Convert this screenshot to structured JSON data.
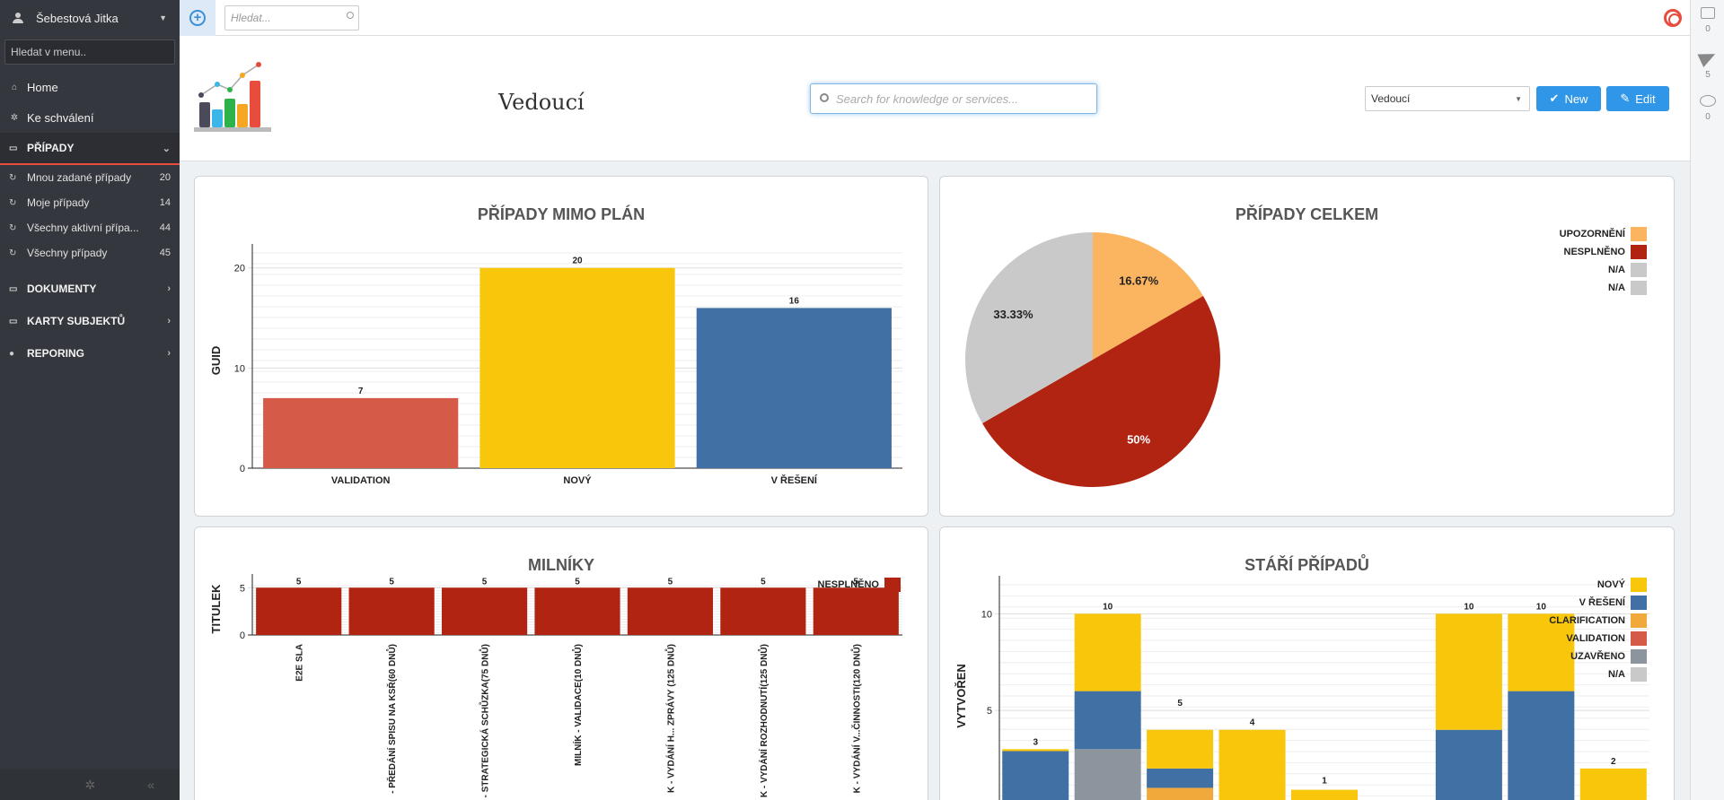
{
  "sidebar": {
    "user": "Šebestová Jitka",
    "search_placeholder": "Hledat v menu..",
    "top_items": [
      {
        "label": "Home",
        "icon": "home-icon"
      },
      {
        "label": "Ke schválení",
        "icon": "gear-icon"
      }
    ],
    "sections": [
      {
        "label": "PŘÍPADY",
        "active": true
      },
      {
        "label": "DOKUMENTY"
      },
      {
        "label": "KARTY SUBJEKTŮ"
      },
      {
        "label": "REPORING"
      }
    ],
    "case_items": [
      {
        "label": "Mnou zadané případy",
        "count": "20"
      },
      {
        "label": "Moje případy",
        "count": "14"
      },
      {
        "label": "Všechny aktivní přípa...",
        "count": "44"
      },
      {
        "label": "Všechny případy",
        "count": "45"
      }
    ]
  },
  "topbar": {
    "search_placeholder": "Hledat..."
  },
  "rail": {
    "inbox_count": "0",
    "sent_count": "5",
    "chat_count": "0"
  },
  "header": {
    "title": "Vedoucí",
    "search_placeholder": "Search for knowledge or services...",
    "select_value": "Vedoucí",
    "new_label": "New",
    "edit_label": "Edit"
  },
  "colors": {
    "yellow": "#f8c60a",
    "blue": "#4070a4",
    "red": "#b22412",
    "salmon": "#d55b48",
    "orange_light": "#fbb560",
    "grey": "#c9c9c9",
    "steel": "#8c949d",
    "amber": "#f2a93b"
  },
  "chart_data": [
    {
      "type": "bar",
      "title": "PŘÍPADY MIMO PLÁN",
      "ylabel": "GUID",
      "categories": [
        "VALIDATION",
        "NOVÝ",
        "V ŘEŠENÍ"
      ],
      "values": [
        7,
        20,
        16
      ],
      "bar_colors": [
        "#d55b48",
        "#f8c60a",
        "#4070a4"
      ],
      "ylim": [
        0,
        21.5
      ],
      "yticks": [
        0,
        10,
        20
      ]
    },
    {
      "type": "pie",
      "title": "PŘÍPADY CELKEM",
      "slices": [
        {
          "label": "UPOZORNĚNÍ",
          "value": 16.67,
          "text": "16.67%",
          "color": "#fbb560"
        },
        {
          "label": "NESPLNĚNO",
          "value": 50,
          "text": "50%",
          "color": "#b22412"
        },
        {
          "label": "N/A",
          "value": 33.33,
          "text": "33.33%",
          "color": "#c9c9c9"
        }
      ],
      "legend": [
        {
          "label": "UPOZORNĚNÍ",
          "color": "#fbb560"
        },
        {
          "label": "NESPLNĚNO",
          "color": "#b22412"
        },
        {
          "label": "N/A",
          "color": "#c9c9c9"
        },
        {
          "label": "N/A",
          "color": "#c9c9c9"
        }
      ]
    },
    {
      "type": "bar",
      "title": "MILNÍKY",
      "ylabel": "TITULEK",
      "legend": [
        {
          "label": "NESPLNĚNO",
          "color": "#b22412"
        }
      ],
      "categories": [
        "E2E SLA",
        "- PŘEDÁNÍ SPISU NA KSŘ(60 DNŮ)",
        "- STRATEGICKÁ SCHŮZKA(75 DNŮ)",
        "MILNÍK - VALIDACE(10 DNŮ)",
        "K - VYDÁNÍ H... ZPRÁVY (125 DNŮ)",
        "K - VYDÁNÍ ROZHODNUTÍ(125 DNŮ)",
        "K - VYDÁNÍ V...ČINNOSTI(120 DNŮ)"
      ],
      "values": [
        5,
        5,
        5,
        5,
        5,
        5,
        5
      ],
      "ylim": [
        0,
        5.5
      ],
      "yticks": [
        0,
        5
      ]
    },
    {
      "type": "bar",
      "stacked": true,
      "title": "STÁŘÍ PŘÍPADŮ",
      "ylabel": "VYTVOŘEN",
      "totals": [
        3,
        10,
        5,
        4,
        1,
        "",
        10,
        10,
        2
      ],
      "series": [
        {
          "name": "NOVÝ",
          "color": "#f8c60a",
          "values": [
            0.1,
            4,
            2,
            4,
            0.9,
            0,
            6,
            4,
            2
          ]
        },
        {
          "name": "V ŘEŠENÍ",
          "color": "#4070a4",
          "values": [
            2.8,
            3,
            1,
            0,
            0,
            0,
            4,
            6,
            0
          ]
        },
        {
          "name": "CLARIFICATION",
          "color": "#f2a93b",
          "values": [
            0.1,
            0,
            1,
            0,
            0,
            0,
            0,
            0,
            0
          ]
        },
        {
          "name": "VALIDATION",
          "color": "#d55b48",
          "values": [
            0,
            0,
            0,
            0,
            0,
            0,
            0,
            0,
            0
          ]
        },
        {
          "name": "UZAVŘENO",
          "color": "#8c949d",
          "values": [
            0,
            3,
            0,
            0,
            0,
            0,
            0,
            0,
            0
          ]
        },
        {
          "name": "N/A",
          "color": "#c9c9c9",
          "values": [
            0,
            0,
            0,
            0,
            0,
            0,
            0,
            0,
            0
          ]
        }
      ],
      "ylim": [
        0,
        11.5
      ],
      "yticks": [
        5,
        10
      ]
    }
  ]
}
